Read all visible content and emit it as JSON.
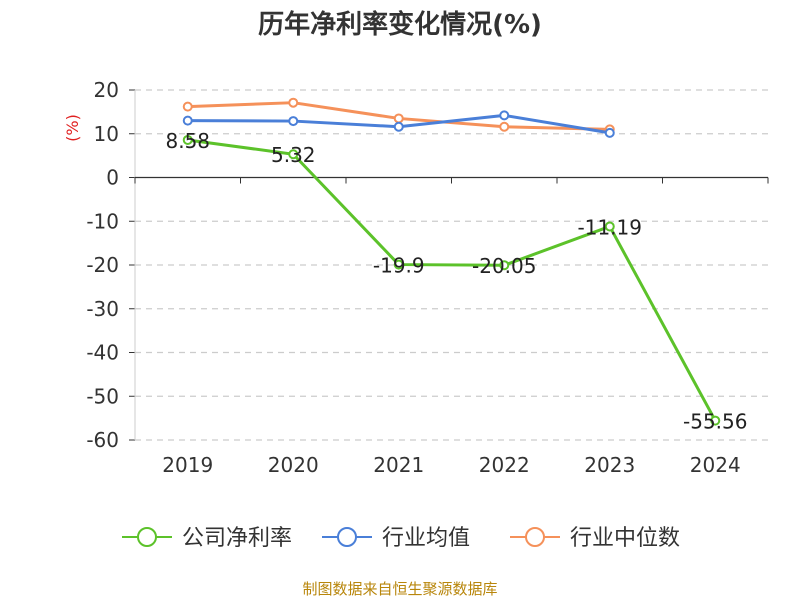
{
  "chart_data": {
    "type": "line",
    "title": "历年净利率变化情况(%)",
    "ylabel": "(%)",
    "xlabel": "",
    "categories": [
      "2019",
      "2020",
      "2021",
      "2022",
      "2023",
      "2024"
    ],
    "ylim": [
      -60,
      20
    ],
    "yticks": [
      20,
      10,
      0,
      -10,
      -20,
      -30,
      -40,
      -50,
      -60
    ],
    "grid": true,
    "legend_position": "bottom",
    "series": [
      {
        "name": "公司净利率",
        "color": "#5cc22a",
        "values": [
          8.58,
          5.32,
          -19.9,
          -20.05,
          -11.19,
          -55.56
        ],
        "labels": [
          "8.58",
          "5.32",
          "-19.9",
          "-20.05",
          "-11.19",
          "-55.56"
        ]
      },
      {
        "name": "行业均值",
        "color": "#4a7fd8",
        "values": [
          13.0,
          12.9,
          11.6,
          14.2,
          10.2,
          null
        ]
      },
      {
        "name": "行业中位数",
        "color": "#f5915a",
        "values": [
          16.2,
          17.1,
          13.5,
          11.6,
          11.0,
          null
        ]
      }
    ],
    "source": "制图数据来自恒生聚源数据库"
  }
}
